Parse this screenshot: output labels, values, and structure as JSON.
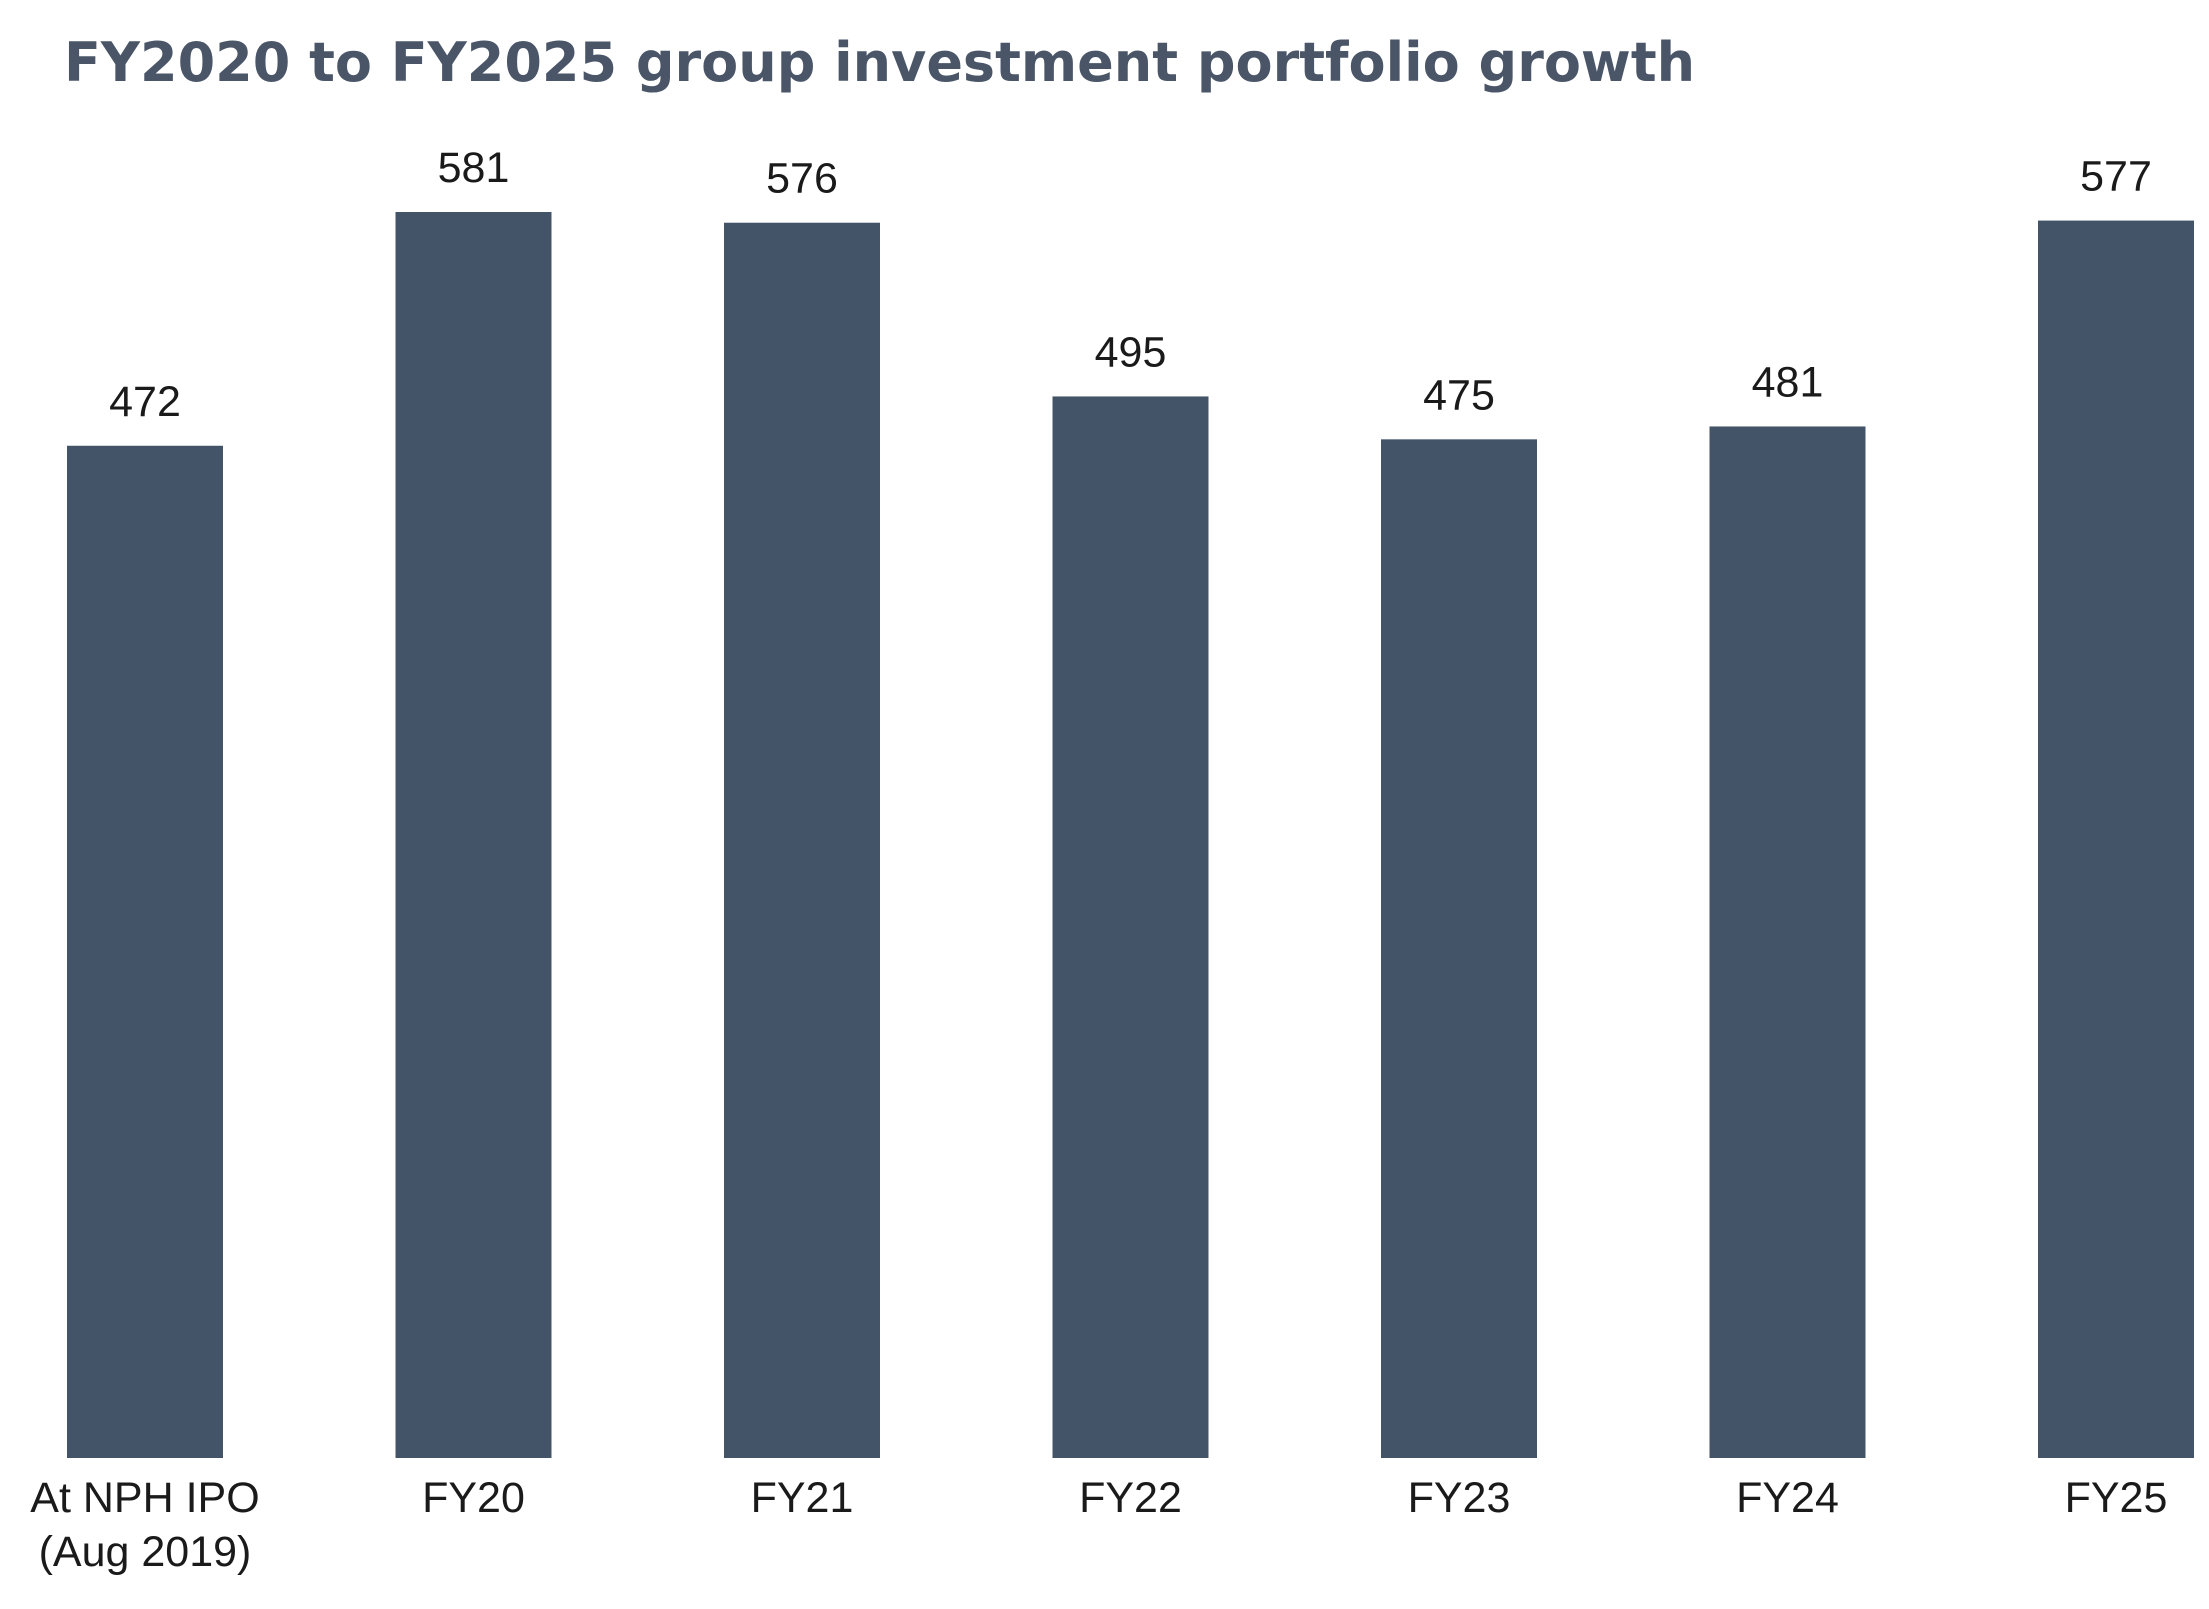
{
  "chart_data": {
    "type": "bar",
    "title": "FY2020 to FY2025 group investment portfolio growth",
    "categories": [
      [
        "At NPH IPO",
        "(Aug 2019)"
      ],
      [
        "FY20"
      ],
      [
        "FY21"
      ],
      [
        "FY22"
      ],
      [
        "FY23"
      ],
      [
        "FY24"
      ],
      [
        "FY25"
      ]
    ],
    "values": [
      472,
      581,
      576,
      495,
      475,
      481,
      577
    ],
    "data_labels": [
      "472",
      "581",
      "576",
      "495",
      "475",
      "481",
      "577"
    ],
    "ylim": [
      0,
      581
    ],
    "grid": false,
    "legend": "none",
    "bar_color": "#445468",
    "xlabel": "",
    "ylabel": ""
  }
}
